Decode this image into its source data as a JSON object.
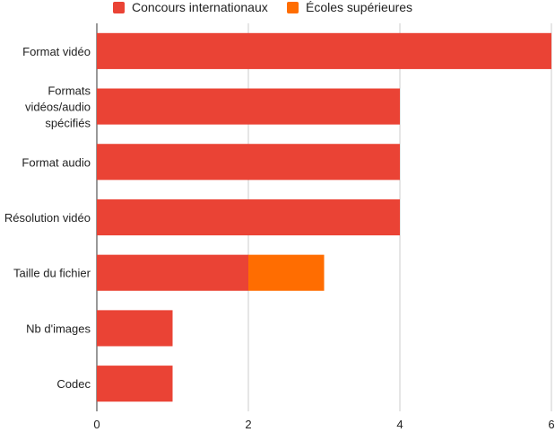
{
  "chart_data": {
    "type": "bar",
    "orientation": "horizontal",
    "stacked": true,
    "categories": [
      "Format vidéo",
      "Formats vidéos/audio spécifiés",
      "Format audio",
      "Résolution vidéo",
      "Taille du fichier",
      "Nb d'images",
      "Codec"
    ],
    "category_lines": [
      [
        "Format vidéo"
      ],
      [
        "Formats",
        "vidéos/audio",
        "spécifiés"
      ],
      [
        "Format audio"
      ],
      [
        "Résolution vidéo"
      ],
      [
        "Taille du fichier"
      ],
      [
        "Nb d'images"
      ],
      [
        "Codec"
      ]
    ],
    "series": [
      {
        "name": "Concours internationaux",
        "color": "#ea4335",
        "values": [
          6,
          4,
          4,
          4,
          2,
          1,
          1
        ]
      },
      {
        "name": "Écoles supérieures",
        "color": "#ff6d01",
        "values": [
          0,
          0,
          0,
          0,
          1,
          0,
          0
        ]
      }
    ],
    "xlim": [
      0,
      6
    ],
    "xticks": [
      0,
      2,
      4,
      6
    ],
    "grid": true,
    "legend_position": "top",
    "title": "",
    "xlabel": "",
    "ylabel": ""
  }
}
